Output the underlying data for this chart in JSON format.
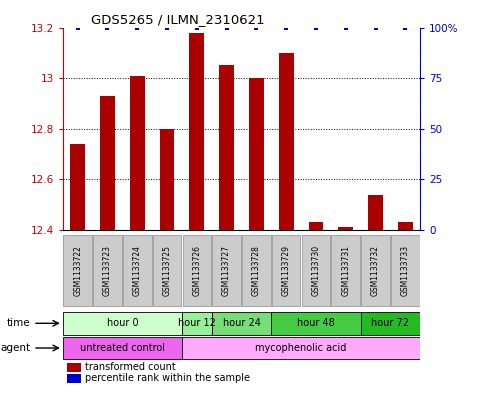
{
  "title": "GDS5265 / ILMN_2310621",
  "samples": [
    "GSM1133722",
    "GSM1133723",
    "GSM1133724",
    "GSM1133725",
    "GSM1133726",
    "GSM1133727",
    "GSM1133728",
    "GSM1133729",
    "GSM1133730",
    "GSM1133731",
    "GSM1133732",
    "GSM1133733"
  ],
  "transformed_counts": [
    12.74,
    12.93,
    13.01,
    12.8,
    13.18,
    13.05,
    13.0,
    13.1,
    12.43,
    12.41,
    12.54,
    12.43
  ],
  "percentile_ranks": [
    100,
    100,
    100,
    100,
    100,
    100,
    100,
    100,
    100,
    100,
    100,
    100
  ],
  "ymin": 12.4,
  "ymax": 13.2,
  "yticks": [
    12.4,
    12.6,
    12.8,
    13.0,
    13.2
  ],
  "ytick_labels": [
    "12.4",
    "12.6",
    "12.8",
    "13",
    "13.2"
  ],
  "y2ticks": [
    0,
    25,
    50,
    75,
    100
  ],
  "y2tick_labels": [
    "0",
    "25",
    "50",
    "75",
    "100%"
  ],
  "bar_color": "#aa0000",
  "dot_color": "#0000cc",
  "bar_bottom": 12.4,
  "time_groups": [
    {
      "label": "hour 0",
      "start": 0,
      "end": 4,
      "color": "#ccffcc"
    },
    {
      "label": "hour 12",
      "start": 4,
      "end": 5,
      "color": "#99ee99"
    },
    {
      "label": "hour 24",
      "start": 5,
      "end": 7,
      "color": "#77dd77"
    },
    {
      "label": "hour 48",
      "start": 7,
      "end": 10,
      "color": "#44cc44"
    },
    {
      "label": "hour 72",
      "start": 10,
      "end": 12,
      "color": "#22bb22"
    }
  ],
  "agent_groups": [
    {
      "label": "untreated control",
      "start": 0,
      "end": 4,
      "color": "#ee66ee"
    },
    {
      "label": "mycophenolic acid",
      "start": 4,
      "end": 12,
      "color": "#ffaaff"
    }
  ],
  "legend_bar_label": "transformed count",
  "legend_dot_label": "percentile rank within the sample",
  "background_color": "#ffffff",
  "bar_width": 0.5,
  "axis_color_left": "#cc0000",
  "axis_color_right": "#0000cc",
  "sample_box_color": "#cccccc",
  "sample_box_edge": "#999999"
}
